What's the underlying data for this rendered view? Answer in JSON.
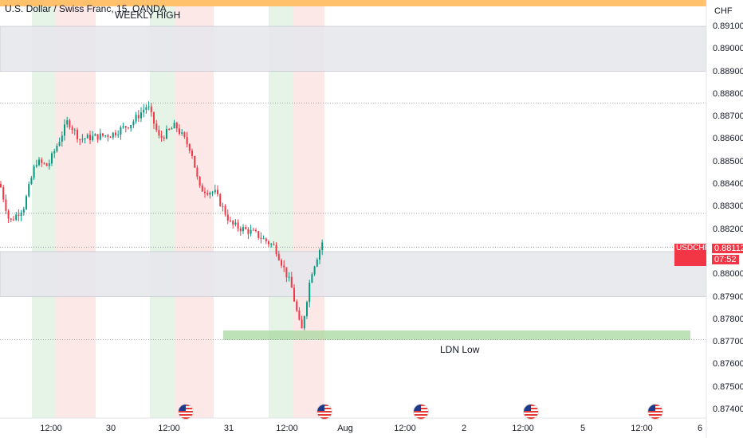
{
  "header": {
    "title": "U.S. Dollar / Swiss Franc, 15, OANDA"
  },
  "colors": {
    "up": "#089981",
    "down": "#f23645",
    "banner": "#ffc16b",
    "zone": "#e6e7ec",
    "green_zone": "#a8d8a0",
    "session_green": "#e6f4e8",
    "session_red": "#fde8e8",
    "grid": "#787b86"
  },
  "axis": {
    "currency": "CHF",
    "yticks": [
      "0.89100",
      "0.89000",
      "0.88900",
      "0.88800",
      "0.88700",
      "0.88600",
      "0.88500",
      "0.88400",
      "0.88300",
      "0.88200",
      "0.88000",
      "0.87900",
      "0.87800",
      "0.87700",
      "0.87600",
      "0.87500",
      "0.87400"
    ],
    "xticks": [
      "12:00",
      "30",
      "12:00",
      "31",
      "12:00",
      "Aug",
      "12:00",
      "2",
      "12:00",
      "5",
      "12:00",
      "6"
    ]
  },
  "badge": {
    "symbol": "USDCHF",
    "price": "0.88112",
    "countdown": "07:52"
  },
  "annotations": {
    "weekly_high": "WEEKLY HIGH",
    "ldn_low": "LDN Low"
  },
  "flags": [
    "us-flag-icon",
    "us-flag-icon",
    "us-flag-icon",
    "us-flag-icon",
    "us-flag-icon",
    "us-flag-icon"
  ],
  "chart_data": {
    "type": "line",
    "symbol": "USDCHF",
    "ylim": [
      0.8735,
      0.8918
    ],
    "x": [
      "29 00:00",
      "29 06:00",
      "29 12:00",
      "29 18:00",
      "30 00:00",
      "30 06:00",
      "30 12:00",
      "30 18:00",
      "31 00:00",
      "31 06:00",
      "31 12:00",
      "31 15:30"
    ],
    "close": [
      0.8838,
      0.8825,
      0.8858,
      0.887,
      0.8863,
      0.8868,
      0.8865,
      0.8855,
      0.8838,
      0.8822,
      0.8813,
      0.8811
    ],
    "zones": [
      {
        "label": "WEEKLY HIGH",
        "low": 0.889,
        "high": 0.891
      },
      {
        "label": "",
        "low": 0.879,
        "high": 0.881
      },
      {
        "label": "LDN Low",
        "low": 0.8771,
        "high": 0.8775
      }
    ],
    "levels": [
      0.8876,
      0.8827,
      0.8812,
      0.8771
    ],
    "grid": false,
    "legend": "none"
  }
}
